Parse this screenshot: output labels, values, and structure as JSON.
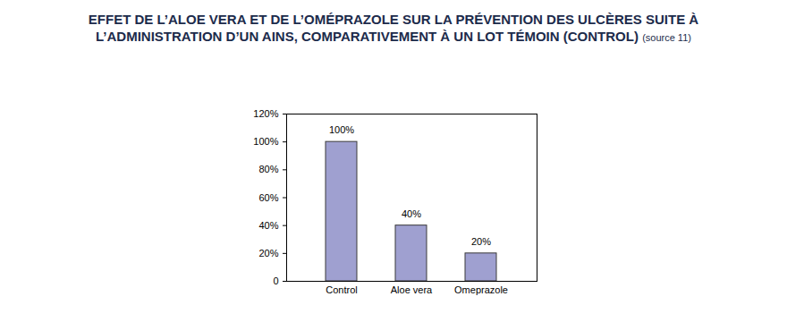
{
  "chart_data": {
    "type": "bar",
    "title": "EFFET DE L’ALOE VERA ET DE L’OMÉPRAZOLE SUR LA PRÉVENTION DES ULCÈRES SUITE À L’ADMINISTRATION D’UN AINS, COMPARATIVEMENT À UN LOT TÉMOIN (CONTROL)",
    "annotations": [
      "(source 11)"
    ],
    "categories": [
      "Control",
      "Aloe vera",
      "Omeprazole"
    ],
    "values": [
      100,
      40,
      20
    ],
    "value_labels": [
      "100%",
      "40%",
      "20%"
    ],
    "data_labels": true,
    "color": "#9fa0d0",
    "ylim": [
      0,
      120
    ],
    "yticks": [
      0,
      {
        "value": 20,
        "label": "20%"
      },
      {
        "value": 40,
        "label": "40%"
      },
      {
        "value": 60,
        "label": "60%"
      },
      {
        "value": 80,
        "label": "80%"
      },
      {
        "value": 100,
        "label": "100%"
      },
      {
        "value": 120,
        "label": "120%"
      }
    ],
    "grid": false
  }
}
